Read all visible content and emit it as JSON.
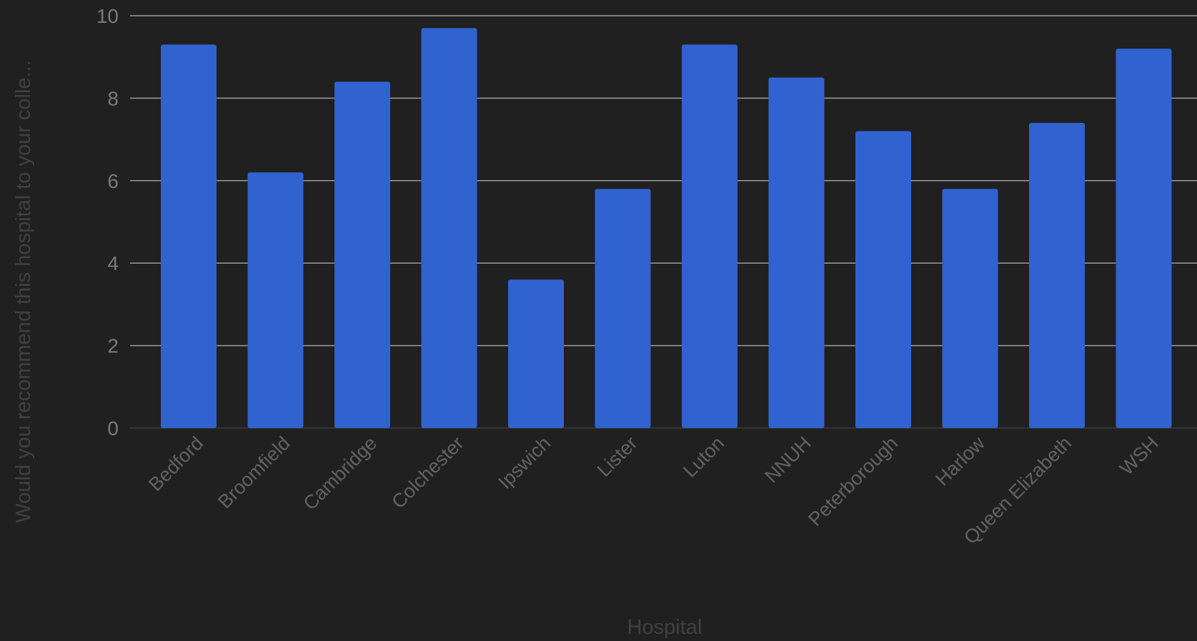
{
  "chart_data": {
    "type": "bar",
    "title": "",
    "xlabel": "Hospital",
    "ylabel": "Would you recommend this hospital to your colle...",
    "categories": [
      "Bedford",
      "Broomfield",
      "Cambridge",
      "Colchester",
      "Ipswich",
      "Lister",
      "Luton",
      "NNUH",
      "Peterborough",
      "Harlow",
      "Queen Elizabeth",
      "WSH"
    ],
    "values": [
      9.3,
      6.2,
      8.4,
      9.7,
      3.6,
      5.8,
      9.3,
      8.5,
      7.2,
      5.8,
      7.4,
      9.2
    ],
    "ylim": [
      0,
      10
    ],
    "yticks": [
      0,
      2,
      4,
      6,
      8,
      10
    ],
    "grid": true,
    "legend": "none",
    "colors": {
      "background": "#202020",
      "bar": "#3063cf",
      "grid": "#9a9a9a"
    }
  }
}
